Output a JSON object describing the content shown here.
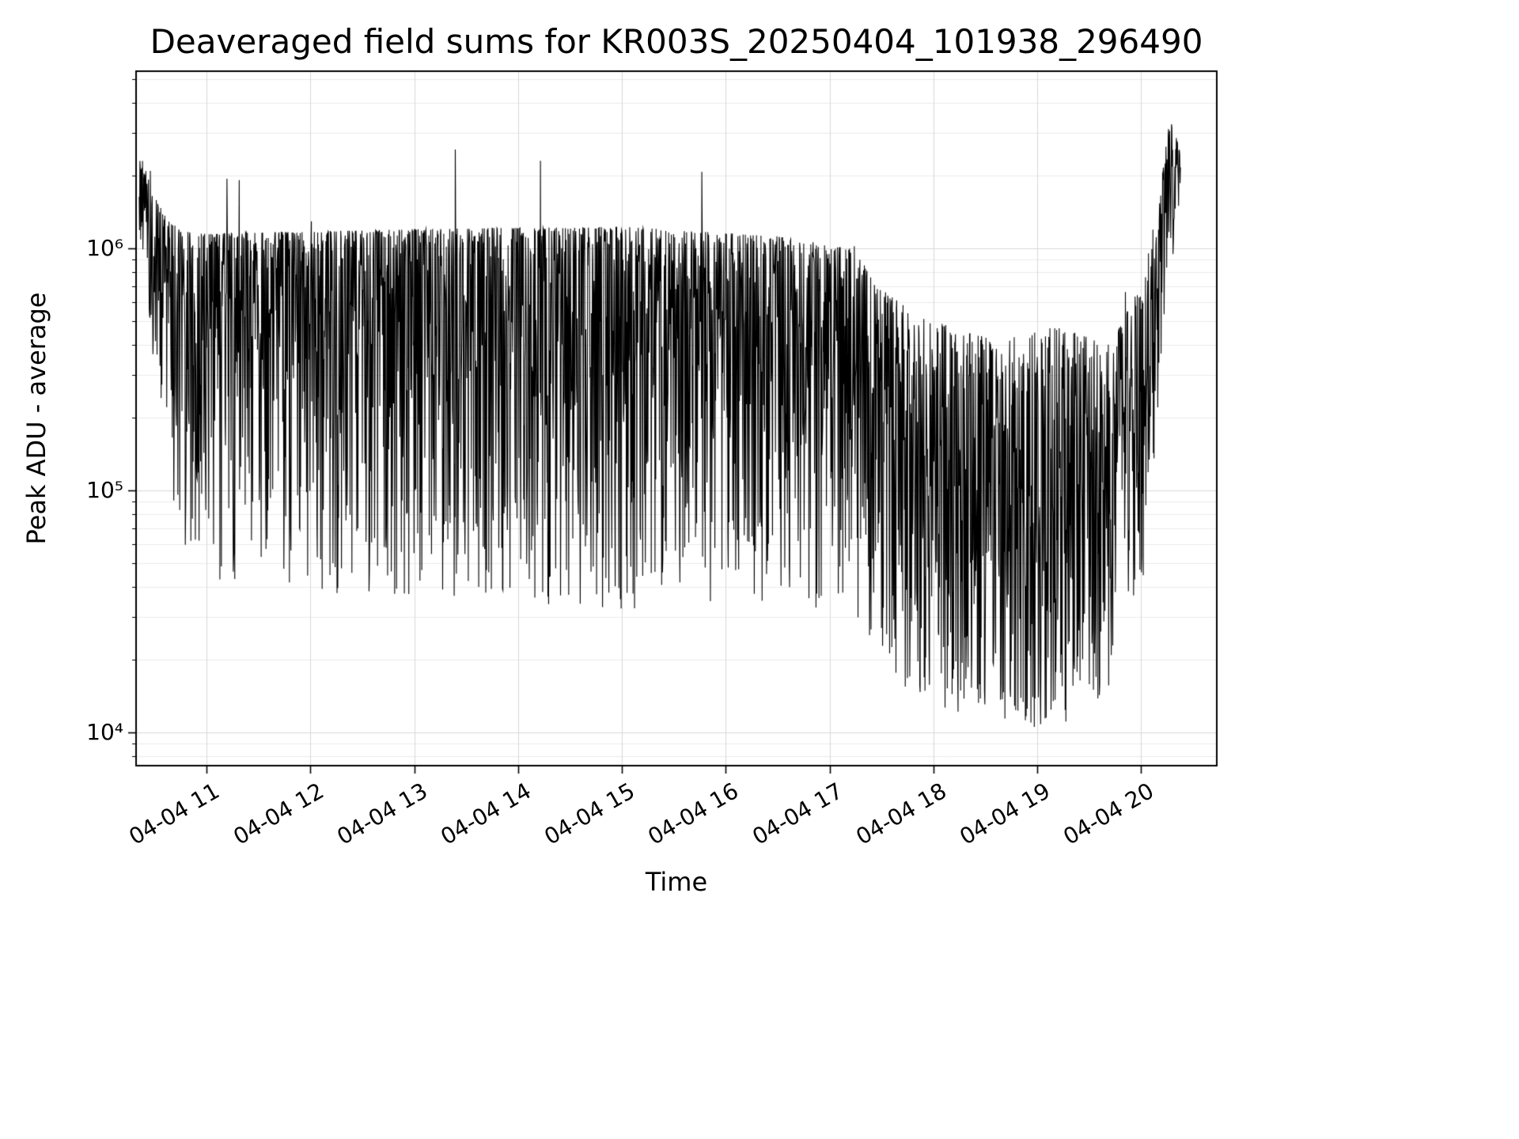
{
  "chart_data": {
    "type": "line",
    "title": "Deaveraged field sums for KR003S_20250404_101938_296490",
    "xlabel": "Time",
    "ylabel": "Peak ADU - average",
    "yscale": "log",
    "ylim": [
      7300,
      5400000
    ],
    "xlim_hours": [
      10.32,
      20.73
    ],
    "x_ticks": [
      {
        "t": 11,
        "label": "04-04 11"
      },
      {
        "t": 12,
        "label": "04-04 12"
      },
      {
        "t": 13,
        "label": "04-04 13"
      },
      {
        "t": 14,
        "label": "04-04 14"
      },
      {
        "t": 15,
        "label": "04-04 15"
      },
      {
        "t": 16,
        "label": "04-04 16"
      },
      {
        "t": 17,
        "label": "04-04 17"
      },
      {
        "t": 18,
        "label": "04-04 18"
      },
      {
        "t": 19,
        "label": "04-04 19"
      },
      {
        "t": 20,
        "label": "04-04 20"
      }
    ],
    "y_ticks": [
      {
        "v": 10000,
        "label": "10⁴"
      },
      {
        "v": 100000,
        "label": "10⁵"
      },
      {
        "v": 1000000,
        "label": "10⁶"
      }
    ],
    "grid": true,
    "grid_color_major": "#d8d8d8",
    "grid_color_minor": "#ebebeb",
    "line_color": "#000000",
    "series": [
      {
        "name": "deaveraged-field-sums",
        "points_rendered": 2800,
        "seed": 42,
        "deep_spike_prob": 0.015,
        "top_spike_prob": 0.004,
        "envelope_log10": [
          {
            "t": 10.35,
            "top": 6.4,
            "bot": 6.0,
            "bias": 1.5
          },
          {
            "t": 10.5,
            "top": 6.22,
            "bot": 5.5,
            "bias": 1.8
          },
          {
            "t": 10.72,
            "top": 6.08,
            "bot": 4.8,
            "bias": 2.4
          },
          {
            "t": 11.0,
            "top": 6.06,
            "bot": 4.62,
            "bias": 2.4
          },
          {
            "t": 13.0,
            "top": 6.08,
            "bot": 4.55,
            "bias": 2.3
          },
          {
            "t": 15.0,
            "top": 6.09,
            "bot": 4.5,
            "bias": 2.2
          },
          {
            "t": 16.5,
            "top": 6.05,
            "bot": 4.52,
            "bias": 2.1
          },
          {
            "t": 17.2,
            "top": 6.0,
            "bot": 4.5,
            "bias": 1.9
          },
          {
            "t": 17.6,
            "top": 5.8,
            "bot": 4.2,
            "bias": 1.6
          },
          {
            "t": 18.0,
            "top": 5.7,
            "bot": 4.1,
            "bias": 1.5
          },
          {
            "t": 18.6,
            "top": 5.62,
            "bot": 4.05,
            "bias": 1.5
          },
          {
            "t": 19.2,
            "top": 5.68,
            "bot": 4.0,
            "bias": 1.5
          },
          {
            "t": 19.7,
            "top": 5.6,
            "bot": 4.15,
            "bias": 1.5
          },
          {
            "t": 20.0,
            "top": 5.85,
            "bot": 4.5,
            "bias": 1.6
          },
          {
            "t": 20.15,
            "top": 6.15,
            "bot": 5.2,
            "bias": 1.7
          },
          {
            "t": 20.28,
            "top": 6.55,
            "bot": 5.85,
            "bias": 1.6
          },
          {
            "t": 20.38,
            "top": 6.4,
            "bot": 6.05,
            "bias": 1.5
          }
        ]
      }
    ]
  }
}
